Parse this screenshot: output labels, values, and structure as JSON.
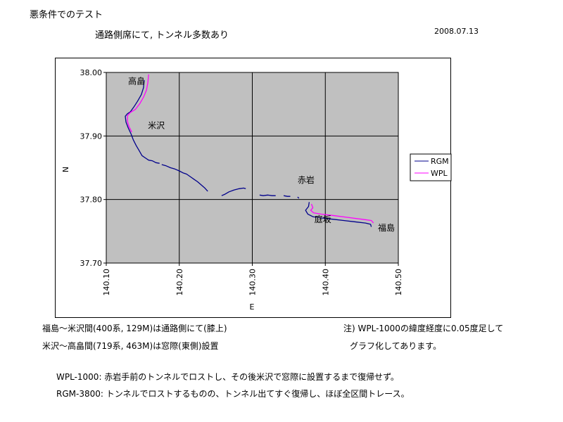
{
  "header": {
    "title": "悪条件でのテスト",
    "subtitle": "通路側席にて, トンネル多数あり",
    "date": "2008.07.13"
  },
  "notes": {
    "fukushima_yonezawa": "福島～米沢間(400系, 129M)は通路側にて(膝上)",
    "yonezawa_takahata": "米沢～高畠間(719系, 463M)は窓際(東側)設置",
    "offset_line1": "注) WPL-1000の緯度経度に0.05度足して",
    "offset_line2": "グラフ化してあります。",
    "wpl_comment": "WPL-1000: 赤岩手前のトンネルでロストし、その後米沢で窓際に設置するまで復帰せず。",
    "rgm_comment": "RGM-3800: トンネルでロストするものの、トンネル出てすぐ復帰し、ほぼ全区間トレース。"
  },
  "colors": {
    "plot_bg": "#c0c0c0",
    "grid": "#000000",
    "rgm": "#00008b",
    "wpl": "#ff00ff"
  },
  "chart_data": {
    "type": "scatter",
    "xlabel": "E",
    "ylabel": "N",
    "xlim": [
      140.1,
      140.5
    ],
    "ylim": [
      37.7,
      38.0
    ],
    "x_ticks": [
      "140.10",
      "140.20",
      "140.30",
      "140.40",
      "140.50"
    ],
    "y_ticks": [
      "37.70",
      "37.80",
      "37.90",
      "38.00"
    ],
    "grid": true,
    "legend_placement": "right",
    "annotations": [
      {
        "text": "高畠",
        "x": 140.13,
        "y": 37.982
      },
      {
        "text": "米沢",
        "x": 140.157,
        "y": 37.912
      },
      {
        "text": "赤岩",
        "x": 140.362,
        "y": 37.826
      },
      {
        "text": "庭坂",
        "x": 140.385,
        "y": 37.764
      },
      {
        "text": "福島",
        "x": 140.472,
        "y": 37.751
      }
    ],
    "series": [
      {
        "name": "RGM",
        "segments": [
          [
            [
              140.152,
              37.988
            ],
            [
              140.151,
              37.976
            ],
            [
              140.148,
              37.965
            ],
            [
              140.143,
              37.955
            ],
            [
              140.138,
              37.946
            ],
            [
              140.133,
              37.938
            ],
            [
              140.129,
              37.935
            ],
            [
              140.126,
              37.931
            ],
            [
              140.127,
              37.922
            ],
            [
              140.13,
              37.913
            ],
            [
              140.134,
              37.903
            ],
            [
              140.137,
              37.894
            ],
            [
              140.141,
              37.885
            ],
            [
              140.145,
              37.877
            ],
            [
              140.149,
              37.869
            ],
            [
              140.154,
              37.865
            ],
            [
              140.158,
              37.862
            ],
            [
              140.163,
              37.861
            ],
            [
              140.168,
              37.858
            ],
            [
              140.173,
              37.857
            ]
          ],
          [
            [
              140.176,
              37.855
            ],
            [
              140.182,
              37.853
            ],
            [
              140.188,
              37.85
            ],
            [
              140.194,
              37.848
            ],
            [
              140.2,
              37.845
            ],
            [
              140.205,
              37.842
            ],
            [
              140.21,
              37.84
            ],
            [
              140.215,
              37.836
            ],
            [
              140.22,
              37.832
            ],
            [
              140.225,
              37.828
            ],
            [
              140.23,
              37.823
            ],
            [
              140.235,
              37.818
            ],
            [
              140.239,
              37.813
            ]
          ],
          [
            [
              140.258,
              37.806
            ],
            [
              140.262,
              37.808
            ],
            [
              140.268,
              37.812
            ],
            [
              140.275,
              37.815
            ],
            [
              140.282,
              37.817
            ],
            [
              140.288,
              37.818
            ],
            [
              140.291,
              37.817
            ]
          ],
          [
            [
              140.31,
              37.807
            ],
            [
              140.315,
              37.806
            ],
            [
              140.321,
              37.807
            ],
            [
              140.327,
              37.806
            ],
            [
              140.332,
              37.806
            ]
          ],
          [
            [
              140.343,
              37.806
            ],
            [
              140.348,
              37.805
            ],
            [
              140.352,
              37.805
            ]
          ],
          [
            [
              140.362,
              37.804
            ],
            [
              140.364,
              37.802
            ]
          ],
          [
            [
              140.378,
              37.796
            ],
            [
              140.377,
              37.789
            ],
            [
              140.373,
              37.783
            ],
            [
              140.376,
              37.777
            ],
            [
              140.383,
              37.773
            ],
            [
              140.395,
              37.771
            ],
            [
              140.41,
              37.769
            ],
            [
              140.425,
              37.767
            ],
            [
              140.44,
              37.765
            ],
            [
              140.455,
              37.763
            ],
            [
              140.462,
              37.761
            ],
            [
              140.463,
              37.757
            ]
          ]
        ]
      },
      {
        "name": "WPL",
        "segments": [
          [
            [
              140.158,
              37.997
            ],
            [
              140.157,
              37.984
            ],
            [
              140.155,
              37.972
            ],
            [
              140.151,
              37.961
            ],
            [
              140.146,
              37.951
            ],
            [
              140.14,
              37.942
            ],
            [
              140.133,
              37.937
            ],
            [
              140.129,
              37.932
            ],
            [
              140.129,
              37.923
            ],
            [
              140.131,
              37.915
            ],
            [
              140.135,
              37.906
            ]
          ],
          [
            [
              140.381,
              37.793
            ],
            [
              140.383,
              37.787
            ],
            [
              140.38,
              37.783
            ],
            [
              140.384,
              37.779
            ],
            [
              140.394,
              37.777
            ],
            [
              140.41,
              37.775
            ],
            [
              140.43,
              37.772
            ],
            [
              140.45,
              37.769
            ],
            [
              140.463,
              37.767
            ],
            [
              140.466,
              37.763
            ]
          ]
        ]
      }
    ]
  }
}
